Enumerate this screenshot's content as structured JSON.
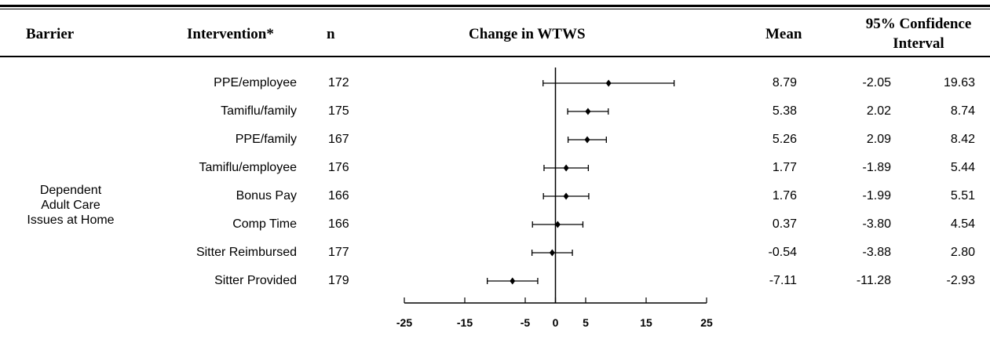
{
  "headers": {
    "barrier": "Barrier",
    "intervention": "Intervention*",
    "n": "n",
    "change": "Change in WTWS",
    "mean": "Mean",
    "ci_line1": "95% Confidence",
    "ci_line2": "Interval"
  },
  "barrier_label": [
    "Dependent",
    "Adult Care",
    "Issues at Home"
  ],
  "rows": [
    {
      "intervention": "PPE/employee",
      "n": "172",
      "mean": "8.79",
      "lower": "-2.05",
      "upper": "19.63"
    },
    {
      "intervention": "Tamiflu/family",
      "n": "175",
      "mean": "5.38",
      "lower": "2.02",
      "upper": "8.74"
    },
    {
      "intervention": "PPE/family",
      "n": "167",
      "mean": "5.26",
      "lower": "2.09",
      "upper": "8.42"
    },
    {
      "intervention": "Tamiflu/employee",
      "n": "176",
      "mean": "1.77",
      "lower": "-1.89",
      "upper": "5.44"
    },
    {
      "intervention": "Bonus Pay",
      "n": "166",
      "mean": "1.76",
      "lower": "-1.99",
      "upper": "5.51"
    },
    {
      "intervention": "Comp Time",
      "n": "166",
      "mean": "0.37",
      "lower": "-3.80",
      "upper": "4.54"
    },
    {
      "intervention": "Sitter Reimbursed",
      "n": "177",
      "mean": "-0.54",
      "lower": "-3.88",
      "upper": "2.80"
    },
    {
      "intervention": "Sitter Provided",
      "n": "179",
      "mean": "-7.11",
      "lower": "-11.28",
      "upper": "-2.93"
    }
  ],
  "chart_data": {
    "type": "scatter",
    "subtype": "forest-plot",
    "title": "Change in WTWS",
    "categories": [
      "PPE/employee",
      "Tamiflu/family",
      "PPE/family",
      "Tamiflu/employee",
      "Bonus Pay",
      "Comp Time",
      "Sitter Reimbursed",
      "Sitter Provided"
    ],
    "series": [
      {
        "values": [
          8.79,
          5.38,
          5.26,
          1.77,
          1.76,
          0.37,
          -0.54,
          -7.11
        ],
        "ci_lower": [
          -2.05,
          2.02,
          2.09,
          -1.89,
          -1.99,
          -3.8,
          -3.88,
          -11.28
        ],
        "ci_upper": [
          19.63,
          8.74,
          8.42,
          5.44,
          5.51,
          4.54,
          2.8,
          -2.93
        ]
      }
    ],
    "xlim": [
      -25,
      25
    ],
    "xticks": [
      -25,
      -15,
      -5,
      0,
      5,
      15,
      25
    ],
    "reference_line": 0,
    "grid": false,
    "marker": "diamond",
    "color": "#000000"
  }
}
